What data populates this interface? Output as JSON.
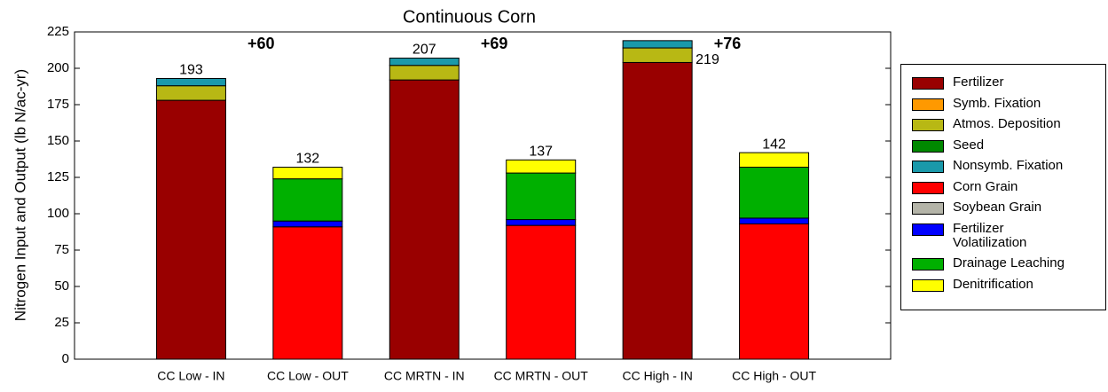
{
  "chart_data": {
    "type": "stacked_bar",
    "title": "Continuous Corn",
    "y_label": "Nitrogen Input and Output (lb N/ac-yr)",
    "categories": [
      "CC Low - IN",
      "CC Low - OUT",
      "CC MRTN - IN",
      "CC MRTN - OUT",
      "CC High - IN",
      "CC High - OUT"
    ],
    "series": [
      {
        "name": "Fertilizer",
        "color": "#990000",
        "values": [
          178,
          0,
          192,
          0,
          204,
          0
        ]
      },
      {
        "name": "Symb. Fixation",
        "color": "#ff9900",
        "values": [
          0,
          0,
          0,
          0,
          0,
          0
        ]
      },
      {
        "name": "Atmos. Deposition",
        "color": "#b8b814",
        "values": [
          10,
          0,
          10,
          0,
          10,
          0
        ]
      },
      {
        "name": "Seed",
        "color": "#008800",
        "values": [
          0,
          0,
          0,
          0,
          0,
          0
        ]
      },
      {
        "name": "Nonsymb. Fixation",
        "color": "#1a99aa",
        "values": [
          5,
          0,
          5,
          0,
          5,
          0
        ]
      },
      {
        "name": "Corn Grain",
        "color": "#ff0000",
        "values": [
          0,
          91,
          0,
          92,
          0,
          93
        ]
      },
      {
        "name": "Soybean Grain",
        "color": "#b4b4a8",
        "values": [
          0,
          0,
          0,
          0,
          0,
          0
        ]
      },
      {
        "name": "Fertilizer Volatilization",
        "color": "#0000ff",
        "values": [
          0,
          4,
          0,
          4,
          0,
          4
        ]
      },
      {
        "name": "Drainage Leaching",
        "color": "#00b000",
        "values": [
          0,
          29,
          0,
          32,
          0,
          35
        ]
      },
      {
        "name": "Denitrification",
        "color": "#ffff00",
        "values": [
          0,
          8,
          0,
          9,
          0,
          10
        ]
      }
    ],
    "totals": [
      193,
      132,
      207,
      137,
      219,
      142
    ],
    "annotations": [
      "+60",
      "+69",
      "+76"
    ],
    "ylim": [
      0,
      225
    ],
    "yticks": [
      0,
      25,
      50,
      75,
      100,
      125,
      150,
      175,
      200,
      225
    ],
    "legend": "right"
  }
}
